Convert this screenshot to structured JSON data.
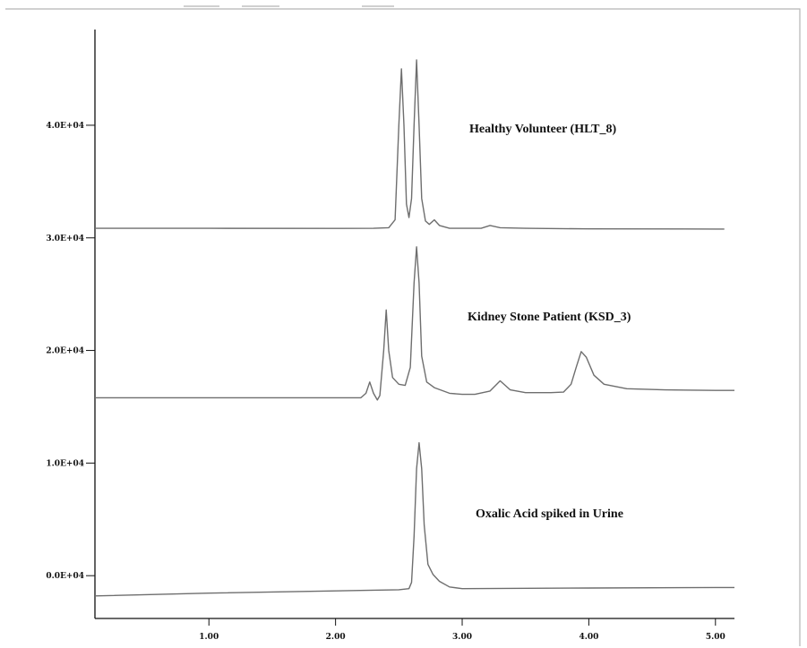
{
  "chart_data": {
    "type": "line",
    "title": "",
    "xlabel": "",
    "ylabel": "",
    "xlim": [
      0.1,
      5.15
    ],
    "ylim": [
      -3800,
      48500
    ],
    "x_ticks": [
      1,
      2,
      3,
      4,
      5
    ],
    "x_tick_labels": [
      "1.00",
      "2.00",
      "3.00",
      "4.00",
      "5.00"
    ],
    "y_ticks": [
      0,
      10000,
      20000,
      30000,
      40000
    ],
    "y_tick_labels": [
      "0.0E+04",
      "1.0E+04",
      "2.0E+04",
      "3.0E+04",
      "4.0E+04"
    ],
    "grid": false,
    "series": [
      {
        "name": "Healthy Volunteer (HLT_8)",
        "points": [
          [
            0.1,
            30850
          ],
          [
            1.0,
            30850
          ],
          [
            2.0,
            30840
          ],
          [
            2.3,
            30850
          ],
          [
            2.42,
            30900
          ],
          [
            2.47,
            31600
          ],
          [
            2.5,
            40000
          ],
          [
            2.52,
            45000
          ],
          [
            2.54,
            40000
          ],
          [
            2.56,
            33000
          ],
          [
            2.58,
            31800
          ],
          [
            2.6,
            33500
          ],
          [
            2.62,
            40000
          ],
          [
            2.64,
            45800
          ],
          [
            2.66,
            40000
          ],
          [
            2.68,
            33500
          ],
          [
            2.71,
            31500
          ],
          [
            2.74,
            31200
          ],
          [
            2.78,
            31600
          ],
          [
            2.82,
            31100
          ],
          [
            2.9,
            30850
          ],
          [
            3.0,
            30850
          ],
          [
            3.15,
            30850
          ],
          [
            3.22,
            31100
          ],
          [
            3.3,
            30900
          ],
          [
            3.5,
            30850
          ],
          [
            4.0,
            30800
          ],
          [
            5.0,
            30780
          ],
          [
            5.07,
            30780
          ]
        ]
      },
      {
        "name": "Kidney Stone Patient (KSD_3)",
        "points": [
          [
            0.1,
            15800
          ],
          [
            1.0,
            15800
          ],
          [
            2.0,
            15800
          ],
          [
            2.2,
            15800
          ],
          [
            2.24,
            16200
          ],
          [
            2.27,
            17200
          ],
          [
            2.3,
            16200
          ],
          [
            2.33,
            15600
          ],
          [
            2.35,
            16000
          ],
          [
            2.38,
            20000
          ],
          [
            2.4,
            23600
          ],
          [
            2.42,
            20000
          ],
          [
            2.45,
            17600
          ],
          [
            2.5,
            17000
          ],
          [
            2.55,
            16900
          ],
          [
            2.59,
            18500
          ],
          [
            2.62,
            26000
          ],
          [
            2.64,
            29200
          ],
          [
            2.66,
            26000
          ],
          [
            2.68,
            19500
          ],
          [
            2.72,
            17200
          ],
          [
            2.78,
            16700
          ],
          [
            2.9,
            16200
          ],
          [
            3.0,
            16100
          ],
          [
            3.1,
            16100
          ],
          [
            3.22,
            16400
          ],
          [
            3.3,
            17300
          ],
          [
            3.38,
            16500
          ],
          [
            3.5,
            16250
          ],
          [
            3.7,
            16250
          ],
          [
            3.8,
            16300
          ],
          [
            3.86,
            17000
          ],
          [
            3.9,
            18500
          ],
          [
            3.94,
            19900
          ],
          [
            3.98,
            19400
          ],
          [
            4.04,
            17800
          ],
          [
            4.12,
            17000
          ],
          [
            4.3,
            16600
          ],
          [
            4.6,
            16500
          ],
          [
            5.0,
            16450
          ],
          [
            5.15,
            16450
          ]
        ]
      },
      {
        "name": "Oxalic Acid spiked in Urine",
        "points": [
          [
            0.1,
            -1800
          ],
          [
            1.0,
            -1550
          ],
          [
            2.0,
            -1350
          ],
          [
            2.5,
            -1250
          ],
          [
            2.58,
            -1150
          ],
          [
            2.6,
            -600
          ],
          [
            2.62,
            3500
          ],
          [
            2.64,
            9500
          ],
          [
            2.66,
            11800
          ],
          [
            2.68,
            9500
          ],
          [
            2.7,
            4500
          ],
          [
            2.73,
            1000
          ],
          [
            2.77,
            100
          ],
          [
            2.82,
            -500
          ],
          [
            2.9,
            -1000
          ],
          [
            3.0,
            -1150
          ],
          [
            4.0,
            -1100
          ],
          [
            5.0,
            -1050
          ],
          [
            5.15,
            -1050
          ]
        ]
      }
    ]
  }
}
